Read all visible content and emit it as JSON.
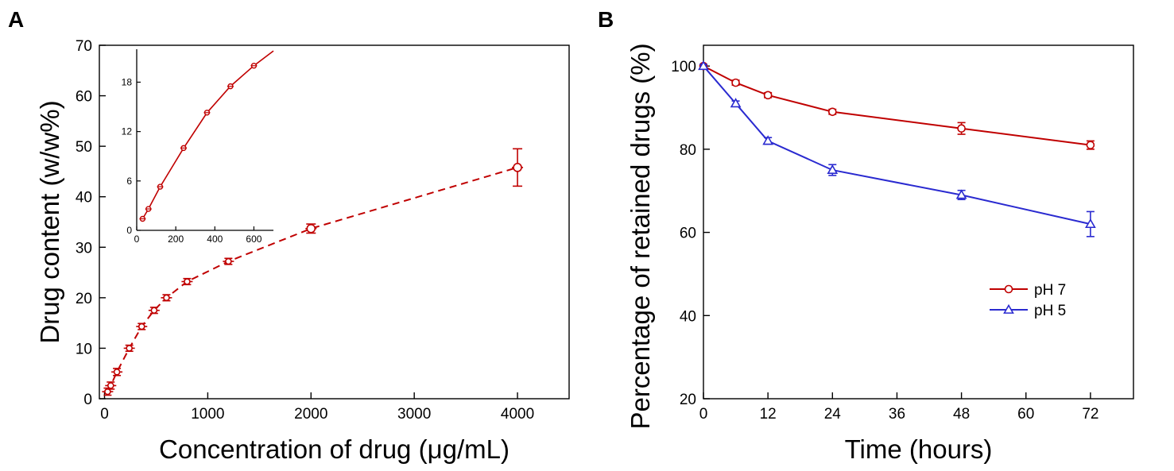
{
  "colors": {
    "red": "#c00000",
    "blue": "#2a2ad0",
    "axis": "#000000"
  },
  "chart_data": [
    {
      "id": "A",
      "panel_label": "A",
      "type": "scatter",
      "xlabel": "Concentration of drug (μg/mL)",
      "ylabel": "Drug content (w/w%)",
      "xlim": [
        -50,
        4500
      ],
      "ylim": [
        0,
        70
      ],
      "xticks": [
        0,
        1000,
        2000,
        3000,
        4000
      ],
      "yticks": [
        0,
        10,
        20,
        30,
        40,
        50,
        60,
        70
      ],
      "series": [
        {
          "name": "drug content",
          "color": "red",
          "marker": "circle",
          "line": "dashed",
          "points": [
            {
              "x": 30,
              "y": 1.4,
              "yerr": 0.7
            },
            {
              "x": 60,
              "y": 2.6,
              "yerr": 0.7
            },
            {
              "x": 120,
              "y": 5.3,
              "yerr": 0.7
            },
            {
              "x": 240,
              "y": 10.0,
              "yerr": 0.6
            },
            {
              "x": 360,
              "y": 14.3,
              "yerr": 0.6
            },
            {
              "x": 480,
              "y": 17.5,
              "yerr": 0.6
            },
            {
              "x": 600,
              "y": 20.0,
              "yerr": 0.6
            },
            {
              "x": 800,
              "y": 23.2,
              "yerr": 0.6
            },
            {
              "x": 1200,
              "y": 27.2,
              "yerr": 0.6
            },
            {
              "x": 2000,
              "y": 33.7,
              "yerr": 0.9
            },
            {
              "x": 4000,
              "y": 45.8,
              "yerr": 3.7
            }
          ]
        }
      ],
      "inset": {
        "type": "line",
        "xlim": [
          0,
          700
        ],
        "ylim": [
          0,
          22
        ],
        "xticks": [
          0,
          200,
          400,
          600
        ],
        "yticks": [
          0,
          6,
          12,
          18
        ],
        "color": "red",
        "points": [
          {
            "x": 30,
            "y": 1.4
          },
          {
            "x": 60,
            "y": 2.6
          },
          {
            "x": 120,
            "y": 5.3
          },
          {
            "x": 240,
            "y": 10.0
          },
          {
            "x": 360,
            "y": 14.3
          },
          {
            "x": 480,
            "y": 17.5
          },
          {
            "x": 600,
            "y": 20.0
          },
          {
            "x": 700,
            "y": 21.8
          }
        ]
      }
    },
    {
      "id": "B",
      "panel_label": "B",
      "type": "line",
      "xlabel": "Time (hours)",
      "ylabel": "Percentage of retained drugs (%)",
      "xlim": [
        0,
        80
      ],
      "ylim": [
        20,
        105
      ],
      "xticks": [
        0,
        12,
        24,
        36,
        48,
        60,
        72
      ],
      "yticks": [
        20,
        40,
        60,
        80,
        100
      ],
      "legend_position": "center-right",
      "series": [
        {
          "name": "pH 7",
          "color": "red",
          "marker": "circle",
          "points": [
            {
              "x": 0,
              "y": 100,
              "yerr": 0.4
            },
            {
              "x": 6,
              "y": 96,
              "yerr": 0.6
            },
            {
              "x": 12,
              "y": 93,
              "yerr": 0.6
            },
            {
              "x": 24,
              "y": 89,
              "yerr": 0.6
            },
            {
              "x": 48,
              "y": 85,
              "yerr": 1.4
            },
            {
              "x": 72,
              "y": 81,
              "yerr": 1.0
            }
          ]
        },
        {
          "name": "pH 5",
          "color": "blue",
          "marker": "triangle",
          "points": [
            {
              "x": 0,
              "y": 100,
              "yerr": 0.4
            },
            {
              "x": 6,
              "y": 91,
              "yerr": 0.6
            },
            {
              "x": 12,
              "y": 82,
              "yerr": 0.8
            },
            {
              "x": 24,
              "y": 75,
              "yerr": 1.3
            },
            {
              "x": 48,
              "y": 69,
              "yerr": 1.1
            },
            {
              "x": 72,
              "y": 62,
              "yerr": 3.0
            }
          ]
        }
      ]
    }
  ]
}
